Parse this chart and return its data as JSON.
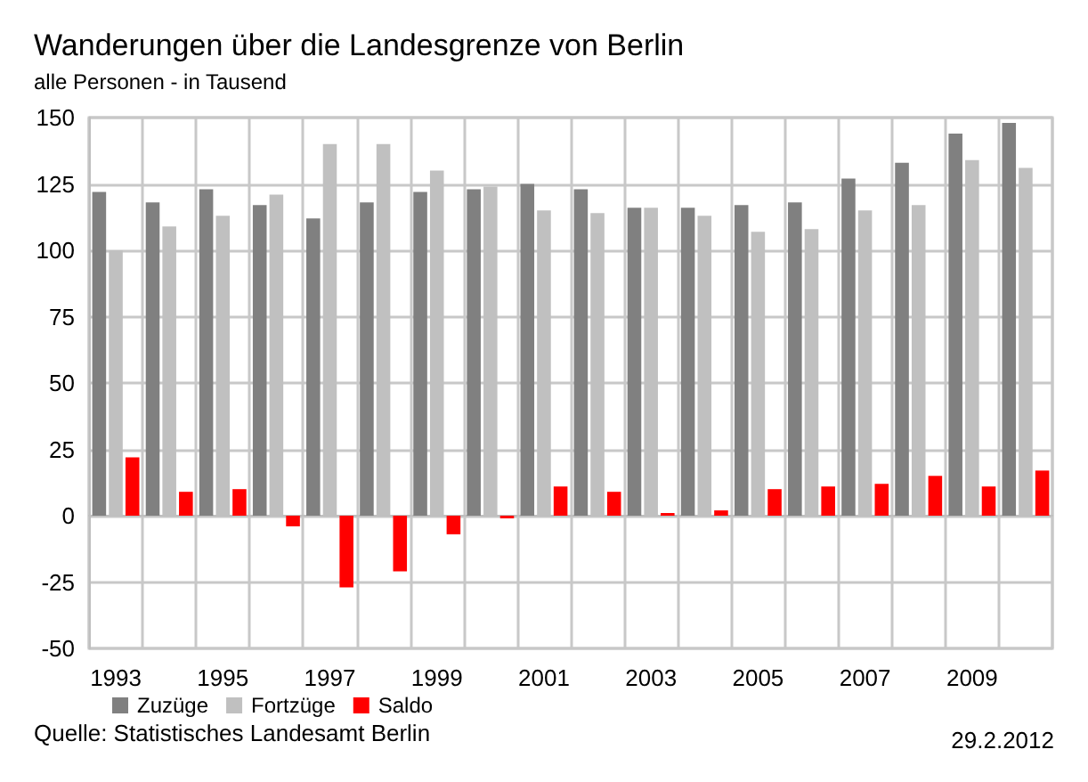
{
  "chart_data": {
    "type": "bar",
    "title": "Wanderungen über die Landesgrenze von Berlin",
    "subtitle": "alle Personen - in Tausend",
    "categories": [
      "1993",
      null,
      "1995",
      null,
      "1997",
      null,
      "1999",
      null,
      "2001",
      null,
      "2003",
      null,
      "2005",
      null,
      "2007",
      null,
      "2009",
      null
    ],
    "series": [
      {
        "name": "Zuzüge",
        "color": "#808080",
        "values": [
          122,
          118,
          123,
          117,
          112,
          118,
          122,
          123,
          125,
          123,
          116,
          116,
          117,
          118,
          127,
          133,
          144,
          148
        ]
      },
      {
        "name": "Fortzüge",
        "color": "#c0c0c0",
        "values": [
          100,
          109,
          113,
          121,
          140,
          140,
          130,
          124,
          115,
          114,
          116,
          113,
          107,
          108,
          115,
          117,
          134,
          131
        ]
      },
      {
        "name": "Saldo",
        "color": "#ff0000",
        "values": [
          22,
          9,
          10,
          -4,
          -27,
          -21,
          -7,
          -1,
          11,
          9,
          1,
          2,
          10,
          11,
          12,
          15,
          11,
          17
        ]
      }
    ],
    "ylim": [
      -50,
      150
    ],
    "yticks": [
      -50,
      -25,
      0,
      25,
      50,
      75,
      100,
      125,
      150
    ],
    "grid": true,
    "legend": "bottom left",
    "annotations": [
      "Quelle: Statistisches Landesamt Berlin",
      "29.2.2012"
    ]
  }
}
